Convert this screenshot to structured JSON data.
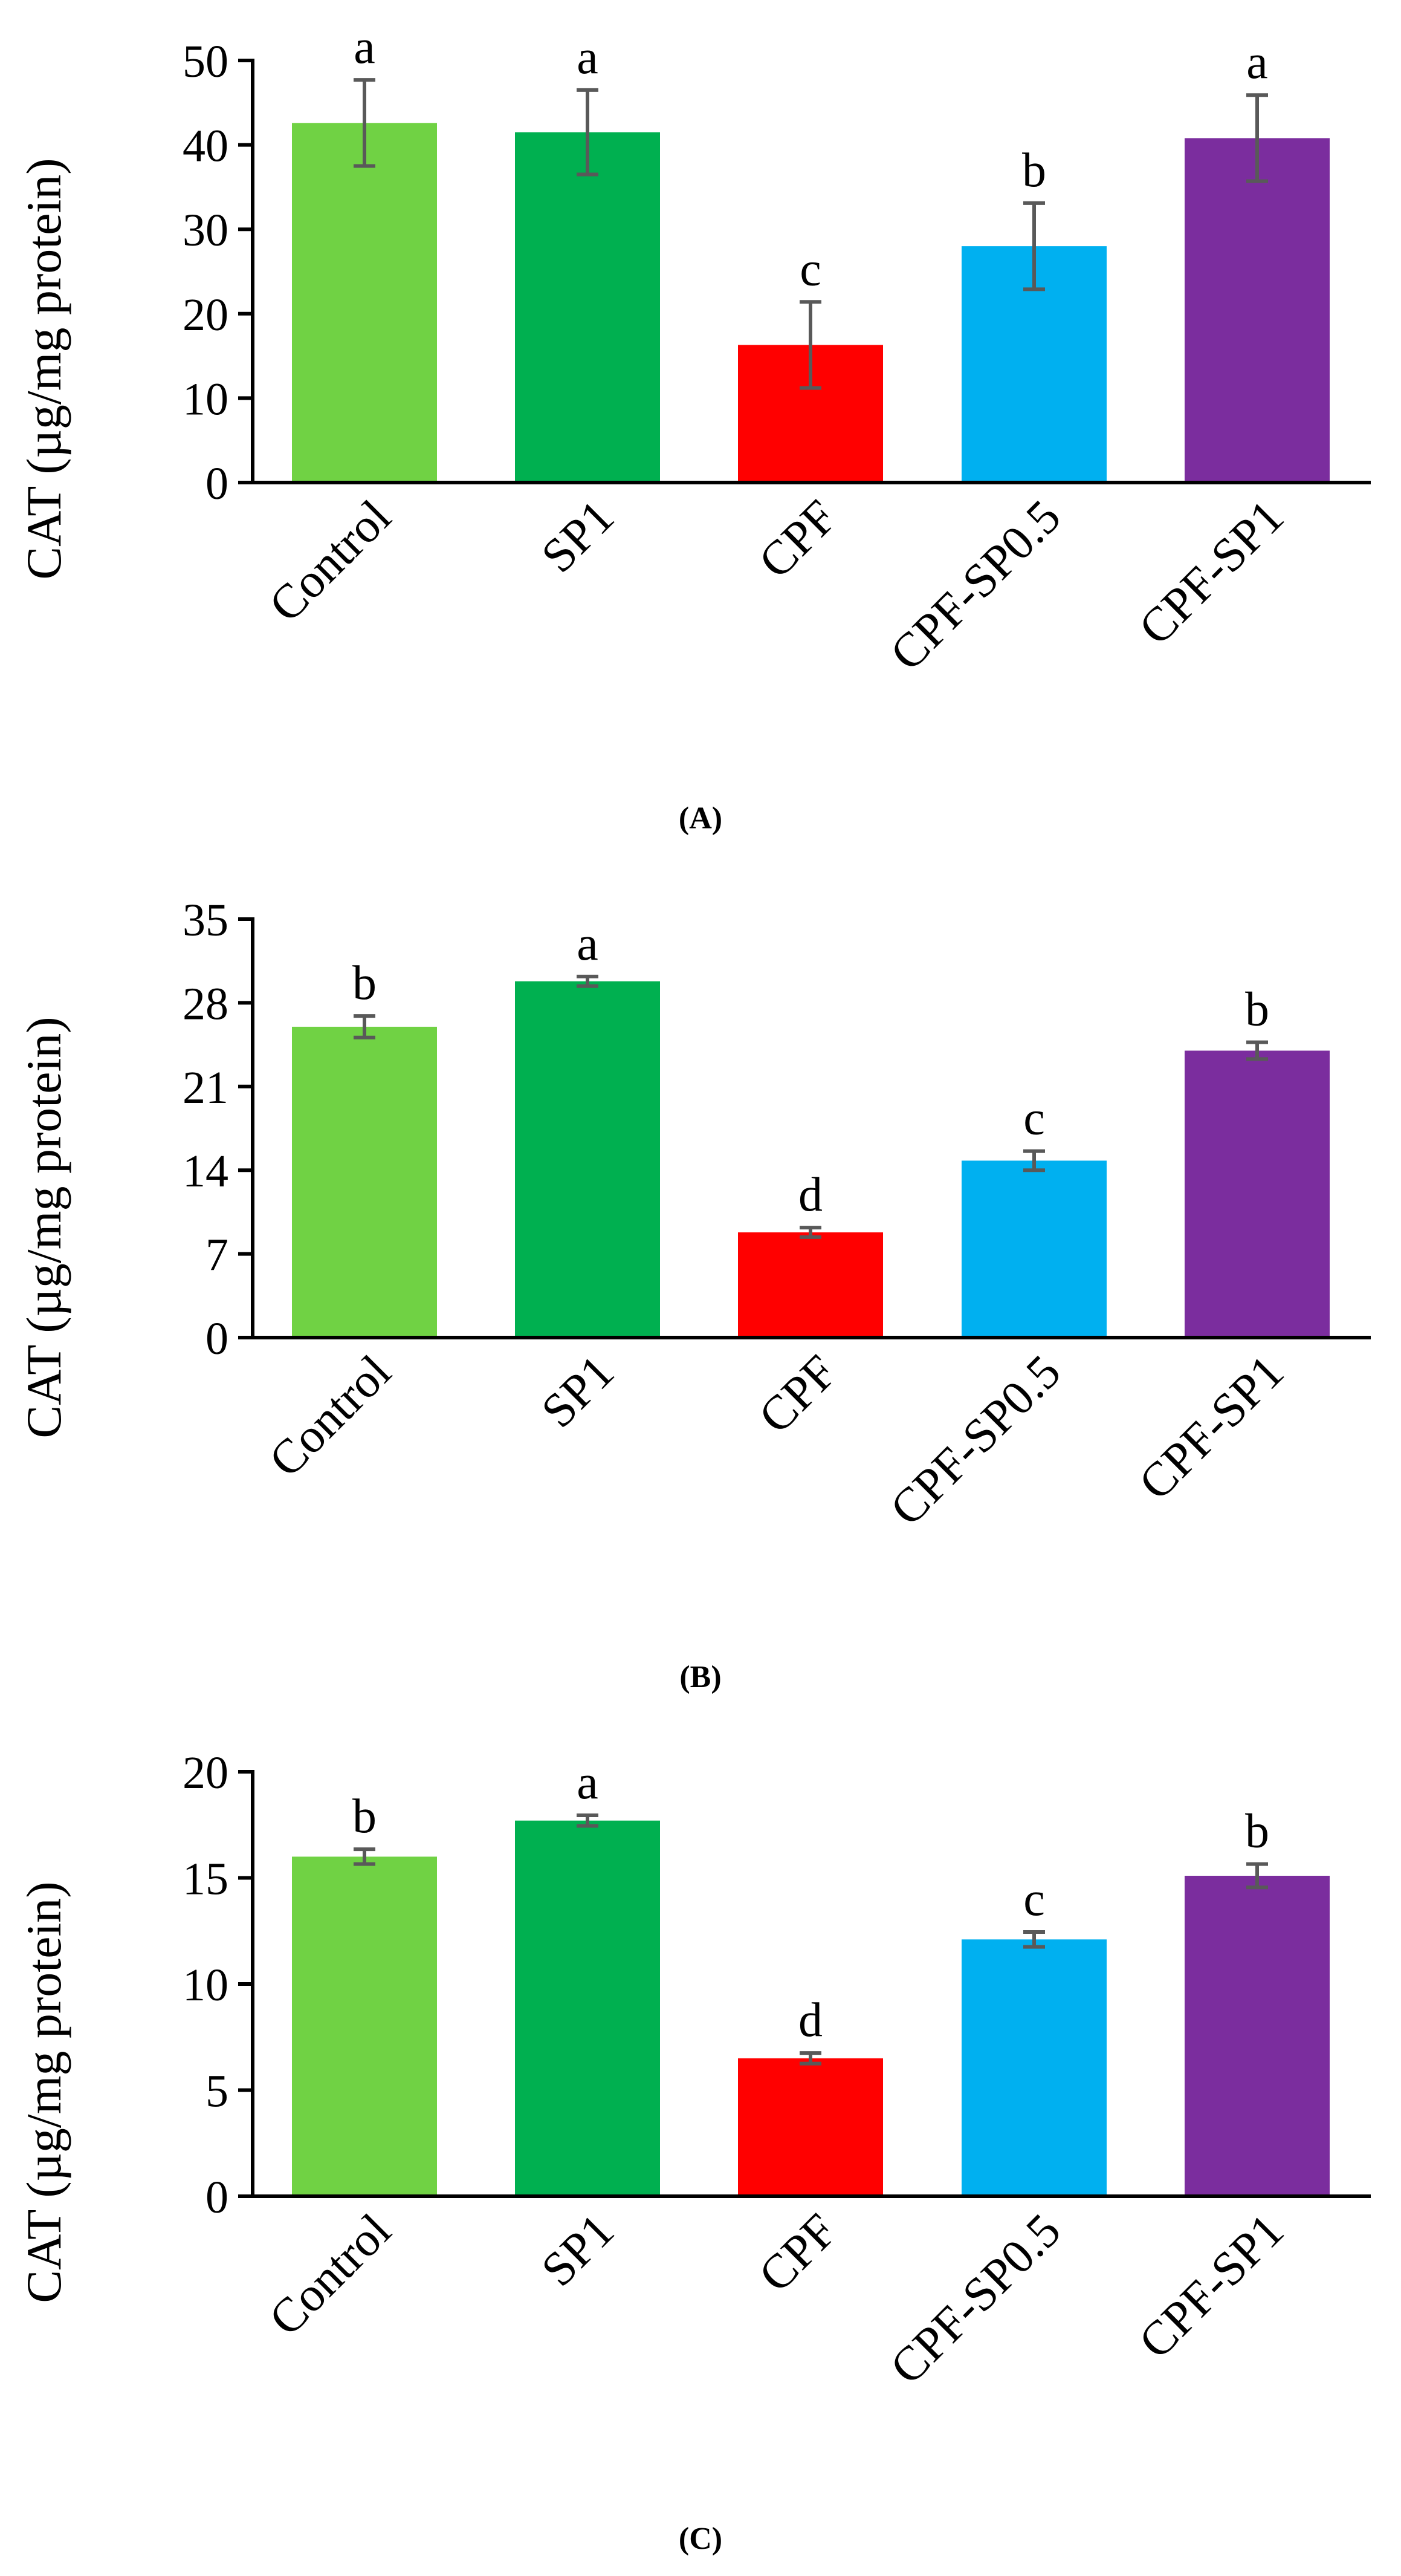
{
  "chart_data": [
    {
      "type": "bar",
      "panel_label": "(A)",
      "ylabel": "CAT (µg/mg protein)",
      "ylim": [
        0,
        50
      ],
      "yticks": [
        "0",
        "10",
        "20",
        "30",
        "40",
        "50"
      ],
      "ytick_values": [
        0,
        10,
        20,
        30,
        40,
        50
      ],
      "categories": [
        "Control",
        "SP1",
        "CPF",
        "CPF-SP0.5",
        "CPF-SP1"
      ],
      "values": [
        42.6,
        41.5,
        16.3,
        28.0,
        40.8
      ],
      "errors": [
        5.1,
        5.0,
        5.1,
        5.1,
        5.1
      ],
      "letters": [
        "a",
        "a",
        "c",
        "b",
        "a"
      ],
      "colors": [
        "#70D244",
        "#00B050",
        "#FF0000",
        "#00B0F0",
        "#7B2D9E"
      ]
    },
    {
      "type": "bar",
      "panel_label": "(B)",
      "ylabel": "CAT (µg/mg protein)",
      "ylim": [
        0,
        35
      ],
      "yticks": [
        "0",
        "7",
        "14",
        "21",
        "28",
        "35"
      ],
      "ytick_values": [
        0,
        7,
        14,
        21,
        28,
        35
      ],
      "categories": [
        "Control",
        "SP1",
        "CPF",
        "CPF-SP0.5",
        "CPF-SP1"
      ],
      "values": [
        26.0,
        29.8,
        8.8,
        14.8,
        24.0
      ],
      "errors": [
        0.9,
        0.4,
        0.4,
        0.8,
        0.7
      ],
      "letters": [
        "b",
        "a",
        "d",
        "c",
        "b"
      ],
      "colors": [
        "#70D244",
        "#00B050",
        "#FF0000",
        "#00B0F0",
        "#7B2D9E"
      ]
    },
    {
      "type": "bar",
      "panel_label": "(C)",
      "ylabel": "CAT (µg/mg protein)",
      "ylim": [
        0,
        20
      ],
      "yticks": [
        "0",
        "5",
        "10",
        "15",
        "20"
      ],
      "ytick_values": [
        0,
        5,
        10,
        15,
        20
      ],
      "categories": [
        "Control",
        "SP1",
        "CPF",
        "CPF-SP0.5",
        "CPF-SP1"
      ],
      "values": [
        16.0,
        17.7,
        6.5,
        12.1,
        15.1
      ],
      "errors": [
        0.35,
        0.25,
        0.25,
        0.35,
        0.55
      ],
      "letters": [
        "b",
        "a",
        "d",
        "c",
        "b"
      ],
      "colors": [
        "#70D244",
        "#00B050",
        "#FF0000",
        "#00B0F0",
        "#7B2D9E"
      ]
    }
  ]
}
